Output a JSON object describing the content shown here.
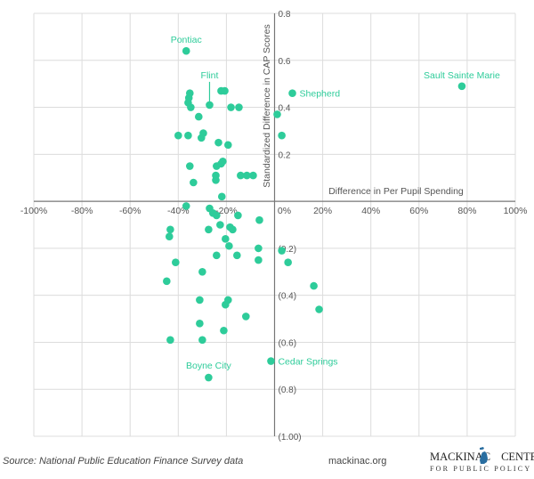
{
  "chart_data": {
    "type": "scatter",
    "title": "",
    "xlabel": "Difference in Per Pupil Spending",
    "ylabel": "Standardized Difference in CAP Scores",
    "xlim": [
      -100,
      100
    ],
    "ylim": [
      -1.0,
      0.8
    ],
    "grid": true,
    "x_ticks": [
      -100,
      -80,
      -60,
      -40,
      -20,
      0,
      20,
      40,
      60,
      80,
      100
    ],
    "x_tick_labels": [
      "-100%",
      "-80%",
      "-60%",
      "-40%",
      "-20%",
      "0%",
      "20%",
      "40%",
      "60%",
      "80%",
      "100%"
    ],
    "y_ticks": [
      0.8,
      0.6,
      0.4,
      0.2,
      -0.2,
      -0.4,
      -0.6,
      -0.8,
      -1.0
    ],
    "y_tick_labels": [
      "0.8",
      "0.6",
      "0.4",
      "0.2",
      "(0.2)",
      "(0.4)",
      "(0.6)",
      "(0.8)",
      "(1.00)"
    ],
    "point_color": "#2ecc9a",
    "labeled_points": [
      {
        "label": "Pontiac",
        "x": -36.7,
        "y": 0.64,
        "label_position": "above"
      },
      {
        "label": "Flint",
        "x": -27,
        "y": 0.41,
        "label_position": "above-leader"
      },
      {
        "label": "Sault Sainte Marie",
        "x": 77.8,
        "y": 0.49,
        "label_position": "above"
      },
      {
        "label": "Shepherd",
        "x": 7.4,
        "y": 0.46,
        "label_position": "right"
      },
      {
        "label": "Cedar Springs",
        "x": -1.5,
        "y": -0.68,
        "label_position": "right"
      },
      {
        "label": "Boyne City",
        "x": -27.4,
        "y": -0.75,
        "label_position": "above"
      }
    ],
    "points": [
      [
        -35.2,
        0.46
      ],
      [
        -35.6,
        0.44
      ],
      [
        -35.9,
        0.42
      ],
      [
        -34.8,
        0.4
      ],
      [
        -22.2,
        0.47
      ],
      [
        -20.7,
        0.47
      ],
      [
        -18.1,
        0.4
      ],
      [
        -14.8,
        0.4
      ],
      [
        -31.5,
        0.36
      ],
      [
        -40,
        0.28
      ],
      [
        -35.9,
        0.28
      ],
      [
        -29.6,
        0.29
      ],
      [
        -30.4,
        0.27
      ],
      [
        -23.3,
        0.25
      ],
      [
        -19.3,
        0.24
      ],
      [
        1.1,
        0.37
      ],
      [
        3,
        0.28
      ],
      [
        -35.2,
        0.15
      ],
      [
        -24.1,
        0.15
      ],
      [
        -22.2,
        0.16
      ],
      [
        -21.5,
        0.17
      ],
      [
        -24.4,
        0.11
      ],
      [
        -33.7,
        0.08
      ],
      [
        -24.4,
        0.09
      ],
      [
        -14.1,
        0.11
      ],
      [
        -11.5,
        0.11
      ],
      [
        -8.9,
        0.11
      ],
      [
        -21.9,
        0.02
      ],
      [
        -36.7,
        -0.02
      ],
      [
        -27,
        -0.03
      ],
      [
        -25.6,
        -0.05
      ],
      [
        -24.1,
        -0.06
      ],
      [
        -15.2,
        -0.06
      ],
      [
        -6.3,
        -0.08
      ],
      [
        -43.3,
        -0.12
      ],
      [
        -27.4,
        -0.12
      ],
      [
        -22.6,
        -0.1
      ],
      [
        -18.5,
        -0.11
      ],
      [
        -17.4,
        -0.12
      ],
      [
        -43.7,
        -0.15
      ],
      [
        -20.4,
        -0.16
      ],
      [
        -18.9,
        -0.19
      ],
      [
        -6.7,
        -0.2
      ],
      [
        3,
        -0.21
      ],
      [
        -24.1,
        -0.23
      ],
      [
        -15.6,
        -0.23
      ],
      [
        -6.7,
        -0.25
      ],
      [
        5.6,
        -0.26
      ],
      [
        -41.1,
        -0.26
      ],
      [
        -30,
        -0.3
      ],
      [
        -44.8,
        -0.34
      ],
      [
        16.3,
        -0.36
      ],
      [
        -31.1,
        -0.42
      ],
      [
        -19.3,
        -0.42
      ],
      [
        -20.4,
        -0.44
      ],
      [
        18.5,
        -0.46
      ],
      [
        -11.9,
        -0.49
      ],
      [
        -31.1,
        -0.52
      ],
      [
        -21.1,
        -0.55
      ],
      [
        -43.3,
        -0.59
      ],
      [
        -30,
        -0.59
      ]
    ]
  },
  "footer": {
    "source": "Source: National Public Education Finance Survey data",
    "site": "mackinac.org",
    "logo_main": "MACKINAC CENTER",
    "logo_left": "MACKINAC",
    "logo_right": "CENTER",
    "logo_sub": "FOR PUBLIC POLICY"
  }
}
